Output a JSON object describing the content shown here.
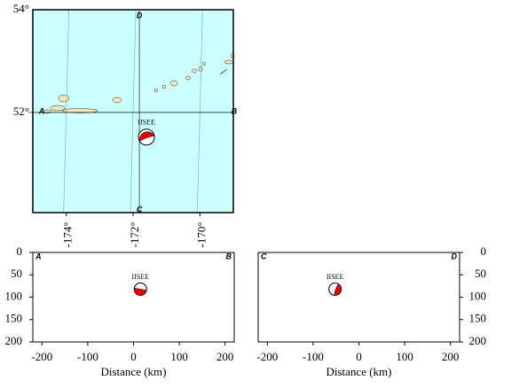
{
  "map": {
    "xlim": [
      -175,
      -169
    ],
    "ylim": [
      50.05,
      54
    ],
    "lat_ticks": [
      {
        "value": 54,
        "label": "54°"
      },
      {
        "value": 52,
        "label": "52°"
      }
    ],
    "lon_ticks": [
      {
        "value": -174,
        "label": "-174°"
      },
      {
        "value": -172,
        "label": "-172°"
      },
      {
        "value": -170,
        "label": "-170°"
      }
    ],
    "profile_labels": [
      "A",
      "B",
      "C",
      "D"
    ],
    "event": {
      "label": "IISEE",
      "lon": -171.6,
      "lat": 51.52
    }
  },
  "chart_data": [
    {
      "type": "scatter",
      "xlabel": "Distance (km)",
      "xlim": [
        -220,
        220
      ],
      "ylim": [
        200,
        0
      ],
      "xticks": [
        -200,
        -100,
        0,
        100,
        200
      ],
      "yticks": [
        0,
        50,
        100,
        150,
        200
      ],
      "start_label": "A",
      "end_label": "B",
      "series": [
        {
          "name": "IISEE",
          "x": [
            15
          ],
          "values": [
            82
          ]
        }
      ]
    },
    {
      "type": "scatter",
      "xlabel": "Distance (km)",
      "xlim": [
        -220,
        220
      ],
      "ylim": [
        200,
        0
      ],
      "xticks": [
        -200,
        -100,
        0,
        100,
        200
      ],
      "yticks": [
        0,
        50,
        100,
        150,
        200
      ],
      "start_label": "C",
      "end_label": "D",
      "series": [
        {
          "name": "IISEE",
          "x": [
            -52
          ],
          "values": [
            82
          ]
        }
      ]
    }
  ]
}
